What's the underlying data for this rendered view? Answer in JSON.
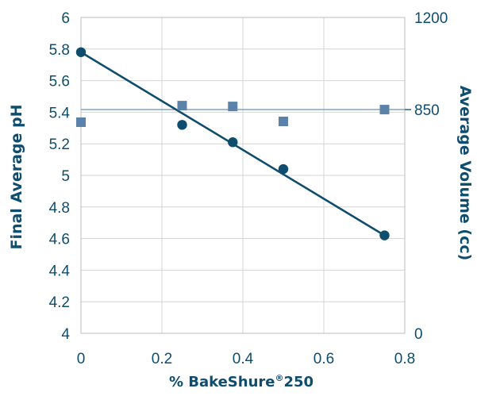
{
  "chart_data": {
    "type": "scatter",
    "xlabel": "% BakeShure",
    "xlabel_superscript": "®",
    "xlabel_suffix": "250",
    "ylabel": "Final Average pH",
    "y2label": "Average Volume (cc)",
    "xlim": [
      0,
      0.8
    ],
    "ylim": [
      4,
      6
    ],
    "y2lim": [
      0,
      1200
    ],
    "x_ticks": [
      "0",
      "0.2",
      "0.4",
      "0.6",
      "0.8"
    ],
    "y_ticks": [
      "4",
      "4.2",
      "4.4",
      "4.6",
      "4.8",
      "5",
      "5.2",
      "5.4",
      "5.6",
      "5.8",
      "6"
    ],
    "y2_ticks": [
      "0",
      "850",
      "1200"
    ],
    "grid": true,
    "series": [
      {
        "axis": "left",
        "marker": "circle",
        "color": "#0e4d6e",
        "x": [
          0,
          0.25,
          0.375,
          0.5,
          0.75
        ],
        "y": [
          5.78,
          5.32,
          5.21,
          5.04,
          4.62
        ],
        "trendline": {
          "x": [
            0,
            0.75
          ],
          "y": [
            5.78,
            4.62
          ]
        }
      },
      {
        "axis": "right",
        "marker": "square",
        "color": "#5b82a8",
        "x": [
          0,
          0.25,
          0.375,
          0.5,
          0.75
        ],
        "y": [
          802,
          865,
          862,
          805,
          850
        ]
      }
    ],
    "reference_line": {
      "axis": "right",
      "y": 850,
      "color": "#7d98b3"
    }
  }
}
